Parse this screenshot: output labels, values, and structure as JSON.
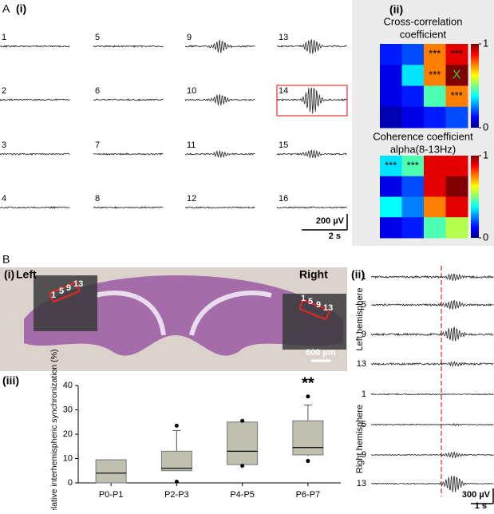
{
  "figure": {
    "panel_a": {
      "label": "A",
      "sub_i": "(i)",
      "sub_ii": "(ii)",
      "channels": [
        "1",
        "5",
        "9",
        "13",
        "2",
        "6",
        "10",
        "14",
        "3",
        "7",
        "11",
        "15",
        "4",
        "8",
        "12",
        "16"
      ],
      "scale_amplitude": "200 µV",
      "scale_time": "2 s"
    },
    "panel_b": {
      "label": "B",
      "sub_i": "(i)",
      "left": "Left",
      "right": "Right",
      "electrodes": [
        "1",
        "5",
        "9",
        "13"
      ],
      "scale": "600 µm",
      "sub_ii": "(ii)",
      "sub_iii": "(iii)",
      "trace_channels": [
        "1",
        "5",
        "9",
        "13",
        "1",
        "5",
        "9",
        "13"
      ],
      "left_hemisphere": "Left hemisphere",
      "right_hemisphere": "Right hemisphere",
      "scale_amplitude": "300 µV",
      "scale_time": "1 s"
    }
  },
  "chart_data": [
    {
      "type": "heatmap",
      "title_lines": [
        "Cross-correlation",
        "coefficient"
      ],
      "values": [
        [
          0.15,
          0.2,
          0.75,
          0.9
        ],
        [
          0.1,
          0.35,
          0.75,
          1
        ],
        [
          0.1,
          0.15,
          0.45,
          0.75
        ],
        [
          0.05,
          0.1,
          0.15,
          0.2
        ]
      ],
      "annotations": [
        [
          null,
          null,
          "***",
          "***"
        ],
        [
          null,
          null,
          "***",
          "X"
        ],
        [
          null,
          null,
          null,
          "***"
        ],
        [
          null,
          null,
          null,
          null
        ]
      ],
      "zlim": [
        0,
        1
      ],
      "zticks": [
        0,
        1
      ]
    },
    {
      "type": "heatmap",
      "title_lines": [
        "Coherence coefficient",
        "alpha(8-13Hz)"
      ],
      "values": [
        [
          0.35,
          0.45,
          0.9,
          0.9
        ],
        [
          0.1,
          0.2,
          0.9,
          1
        ],
        [
          0.38,
          0.25,
          0.75,
          0.9
        ],
        [
          0.1,
          0.15,
          0.45,
          0.55
        ]
      ],
      "annotations": [
        [
          "***",
          "***",
          null,
          null
        ],
        [
          null,
          null,
          null,
          null
        ],
        [
          null,
          null,
          null,
          null
        ],
        [
          null,
          null,
          null,
          null
        ]
      ],
      "zlim": [
        0,
        1
      ],
      "zticks": [
        0,
        1
      ]
    },
    {
      "type": "box",
      "ylabel": "Relative interhemispheric synchronization (%)",
      "categories": [
        "P0-P1",
        "P2-P3",
        "P4-P5",
        "P6-P7"
      ],
      "color": "#bfc0b0",
      "ylim": [
        0,
        40
      ],
      "yticks": [
        0,
        10,
        20,
        30,
        40
      ],
      "whisker_low": [
        0,
        5,
        7.5,
        11
      ],
      "q1": [
        0,
        5,
        7.5,
        11.5
      ],
      "median": [
        4,
        6,
        13,
        14.5
      ],
      "q3": [
        9.5,
        13,
        25,
        25.5
      ],
      "whisker_high": [
        9.5,
        21.5,
        25,
        32
      ],
      "outliers": [
        [],
        [
          23.5,
          0.5
        ],
        [
          25.5,
          7
        ],
        [
          35.5,
          9
        ]
      ],
      "significance": [
        null,
        null,
        null,
        "**"
      ]
    }
  ]
}
